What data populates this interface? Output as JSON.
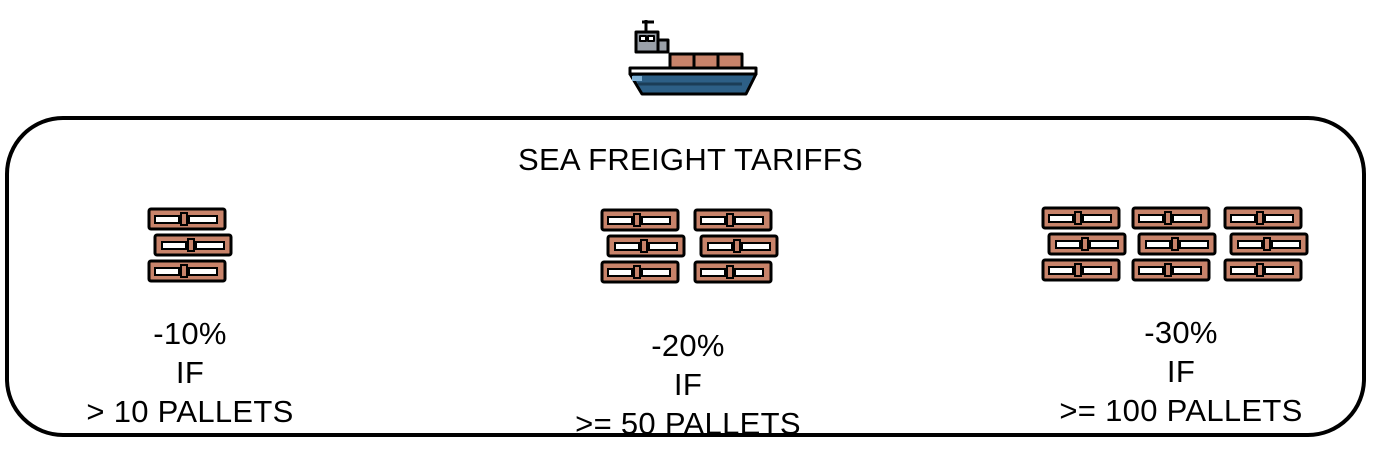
{
  "title": "SEA FREIGHT TARIFFS",
  "icons": {
    "ship": "cargo-ship-icon",
    "pallet": "pallet-stack-icon"
  },
  "colors": {
    "hull": "#2d5f86",
    "cargo": "#c8836a",
    "outline": "#000000",
    "cabin": "#9aa0a8"
  },
  "tiers": [
    {
      "pallet_icons": 1,
      "discount": "-10%",
      "condition": "IF",
      "threshold": "> 10 PALLETS"
    },
    {
      "pallet_icons": 2,
      "discount": "-20%",
      "condition": "IF",
      "threshold": ">= 50 PALLETS"
    },
    {
      "pallet_icons": 3,
      "discount": "-30%",
      "condition": "IF",
      "threshold": ">= 100 PALLETS"
    }
  ]
}
